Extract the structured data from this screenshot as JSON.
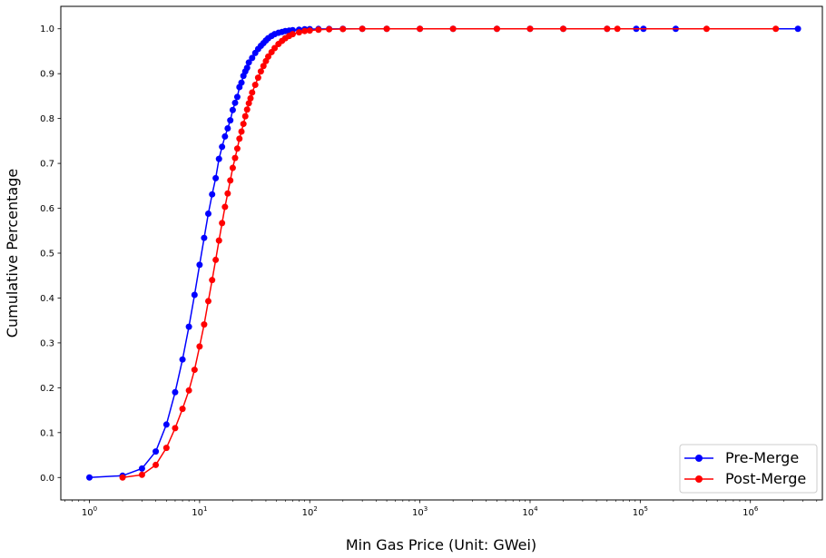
{
  "chart_data": {
    "type": "line",
    "xlabel": "Min Gas Price (Unit: GWei)",
    "ylabel": "Cumulative Percentage",
    "x_scale": "log",
    "xlim": [
      0.55,
      4500000
    ],
    "ylim": [
      -0.05,
      1.05
    ],
    "x_ticks": [
      {
        "value": 1,
        "base": "10",
        "exp": "0"
      },
      {
        "value": 10,
        "base": "10",
        "exp": "1"
      },
      {
        "value": 100,
        "base": "10",
        "exp": "2"
      },
      {
        "value": 1000,
        "base": "10",
        "exp": "3"
      },
      {
        "value": 10000,
        "base": "10",
        "exp": "4"
      },
      {
        "value": 100000,
        "base": "10",
        "exp": "5"
      },
      {
        "value": 1000000,
        "base": "10",
        "exp": "6"
      }
    ],
    "y_ticks": [
      "0.0",
      "0.1",
      "0.2",
      "0.3",
      "0.4",
      "0.5",
      "0.6",
      "0.7",
      "0.8",
      "0.9",
      "1.0"
    ],
    "grid": false,
    "legend_position": "bottom-right",
    "series": [
      {
        "name": "Pre-Merge",
        "color": "#0000ff",
        "x": [
          1,
          2,
          3,
          4,
          5,
          6,
          7,
          8,
          9,
          10,
          11,
          12,
          13,
          14,
          15,
          16,
          17,
          18,
          19,
          20,
          21,
          22,
          23,
          24,
          25,
          26,
          27,
          28,
          30,
          32,
          34,
          36,
          38,
          40,
          42,
          45,
          48,
          52,
          56,
          60,
          65,
          70,
          80,
          90,
          100,
          120,
          150,
          200,
          300,
          500,
          1000,
          2000,
          5000,
          10000,
          20000,
          50000,
          92000,
          107000,
          210000,
          2700000
        ],
        "y": [
          0.0,
          0.004,
          0.02,
          0.058,
          0.118,
          0.19,
          0.263,
          0.336,
          0.407,
          0.474,
          0.534,
          0.588,
          0.631,
          0.667,
          0.71,
          0.737,
          0.76,
          0.778,
          0.796,
          0.819,
          0.835,
          0.848,
          0.87,
          0.88,
          0.895,
          0.905,
          0.913,
          0.925,
          0.935,
          0.946,
          0.955,
          0.962,
          0.968,
          0.974,
          0.979,
          0.984,
          0.988,
          0.991,
          0.993,
          0.995,
          0.996,
          0.997,
          0.998,
          0.999,
          0.9993,
          0.9996,
          0.9998,
          0.9999,
          1.0,
          1.0,
          1.0,
          1.0,
          1.0,
          1.0,
          1.0,
          1.0,
          1.0,
          1.0,
          1.0,
          1.0
        ]
      },
      {
        "name": "Post-Merge",
        "color": "#ff0000",
        "x": [
          2,
          3,
          4,
          5,
          6,
          7,
          8,
          9,
          10,
          11,
          12,
          13,
          14,
          15,
          16,
          17,
          18,
          19,
          20,
          21,
          22,
          23,
          24,
          25,
          26,
          27,
          28,
          29,
          30,
          32,
          34,
          36,
          38,
          40,
          42,
          45,
          48,
          52,
          56,
          60,
          65,
          70,
          80,
          90,
          100,
          120,
          150,
          200,
          300,
          500,
          1000,
          2000,
          5000,
          10000,
          20000,
          50000,
          62000,
          400000,
          1700000
        ],
        "y": [
          0.0,
          0.006,
          0.028,
          0.066,
          0.11,
          0.153,
          0.194,
          0.24,
          0.292,
          0.341,
          0.393,
          0.44,
          0.485,
          0.528,
          0.567,
          0.603,
          0.633,
          0.662,
          0.69,
          0.712,
          0.733,
          0.755,
          0.771,
          0.788,
          0.805,
          0.82,
          0.834,
          0.845,
          0.858,
          0.875,
          0.891,
          0.905,
          0.917,
          0.928,
          0.938,
          0.948,
          0.957,
          0.966,
          0.973,
          0.979,
          0.984,
          0.988,
          0.992,
          0.995,
          0.996,
          0.998,
          0.9989,
          0.9995,
          1.0,
          1.0,
          1.0,
          1.0,
          1.0,
          1.0,
          1.0,
          1.0,
          1.0,
          1.0,
          1.0
        ]
      }
    ]
  }
}
